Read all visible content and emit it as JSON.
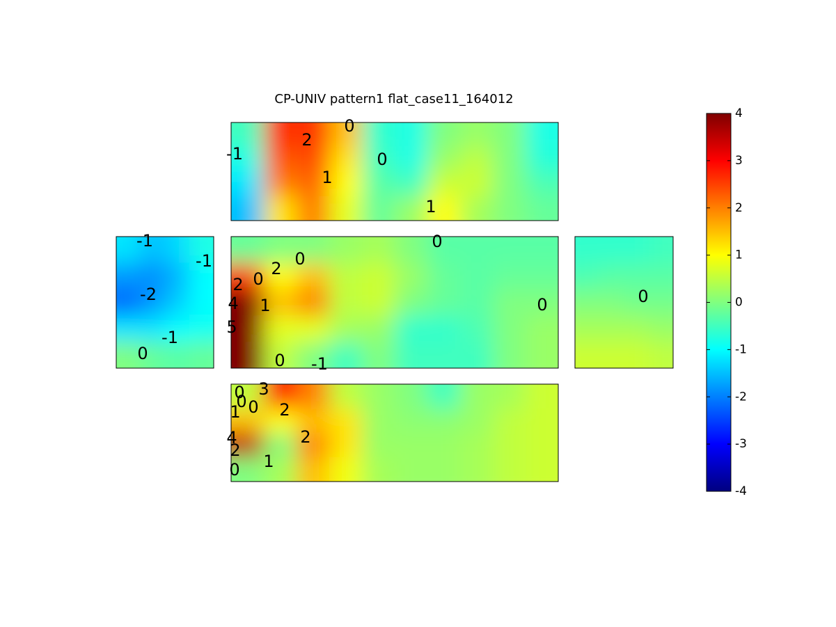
{
  "chart_data": {
    "type": "contour",
    "title": "CP-UNIV pattern1 flat_case11_164012",
    "colormap": "jet",
    "clim": [
      -4,
      4
    ],
    "colorbar_ticks": [
      -4,
      -3,
      -2,
      -1,
      0,
      1,
      2,
      3,
      4
    ],
    "panels": [
      {
        "z": [
          [
            -0.5,
            2.6,
            2.6,
            1.5,
            -0.6,
            -0.8,
            0,
            0.2,
            0,
            -0.8
          ],
          [
            -0.8,
            2.3,
            2.4,
            1.2,
            -0.5,
            -0.8,
            0.2,
            0.5,
            0,
            -0.7
          ],
          [
            -1.2,
            2.0,
            2.2,
            1.0,
            -0.3,
            -0.5,
            0.6,
            0.6,
            0,
            -0.4
          ],
          [
            -1.5,
            1.2,
            2.0,
            0.8,
            -0.2,
            0.2,
            1.0,
            0.3,
            0,
            -0.2
          ]
        ],
        "contour_labels": [
          -1,
          2,
          0,
          0,
          1,
          1
        ]
      },
      {
        "z": [
          [
            -1.2,
            -1.5,
            -1.3,
            -0.8
          ],
          [
            -1.8,
            -1.9,
            -1.6,
            -1.0
          ],
          [
            -2.2,
            -1.8,
            -1.4,
            -1.0
          ],
          [
            -1.2,
            -1.2,
            -1.0,
            -0.9
          ],
          [
            0,
            -0.2,
            -0.3,
            -0.2
          ]
        ],
        "contour_labels": [
          -1,
          -1,
          -2,
          -1,
          0
        ]
      },
      {
        "z": [
          [
            -0.2,
            0,
            0,
            0.2,
            0.3,
            0,
            -0.3,
            -0.3,
            -0.3,
            -0.3
          ],
          [
            2.5,
            1.0,
            1.5,
            0.5,
            0.6,
            0.2,
            -0.2,
            -0.3,
            -0.2,
            -0.2
          ],
          [
            4.0,
            1.5,
            2.0,
            0.5,
            0.6,
            0,
            -0.2,
            -0.3,
            0,
            0
          ],
          [
            4.5,
            0.8,
            0.8,
            0.3,
            0.2,
            -0.6,
            -0.6,
            -0.4,
            0,
            0.2
          ],
          [
            4.0,
            0.5,
            0,
            -0.5,
            0,
            -0.5,
            -0.5,
            -0.5,
            0,
            0.2
          ]
        ],
        "contour_labels": [
          0,
          0,
          2,
          0,
          2,
          4,
          1,
          5,
          0,
          0,
          -1
        ]
      },
      {
        "z": [
          [
            -0.6,
            -0.6,
            -0.6,
            -0.5
          ],
          [
            -0.4,
            -0.3,
            -0.3,
            -0.3
          ],
          [
            0,
            0,
            -0.1,
            -0.1
          ],
          [
            0.3,
            0.3,
            0.3,
            0.2
          ],
          [
            0.6,
            0.6,
            0.6,
            0.5
          ]
        ],
        "contour_labels": [
          0
        ]
      },
      {
        "z": [
          [
            0.5,
            3.0,
            2.0,
            0.5,
            0.2,
            0,
            -0.5,
            0.2,
            0.3,
            0.6
          ],
          [
            1.5,
            1.0,
            1.5,
            1.2,
            0.2,
            0.1,
            0.1,
            0.2,
            0.5,
            0.6
          ],
          [
            3.5,
            0,
            2.0,
            1.2,
            0.2,
            0.2,
            0.2,
            0.3,
            0.5,
            0.6
          ],
          [
            0,
            0.3,
            1.5,
            0.9,
            0.3,
            0.2,
            0.2,
            0.3,
            0.5,
            0.6
          ]
        ],
        "contour_labels": [
          3,
          0,
          0,
          0,
          2,
          1,
          2,
          4,
          2,
          1,
          0
        ]
      }
    ]
  }
}
